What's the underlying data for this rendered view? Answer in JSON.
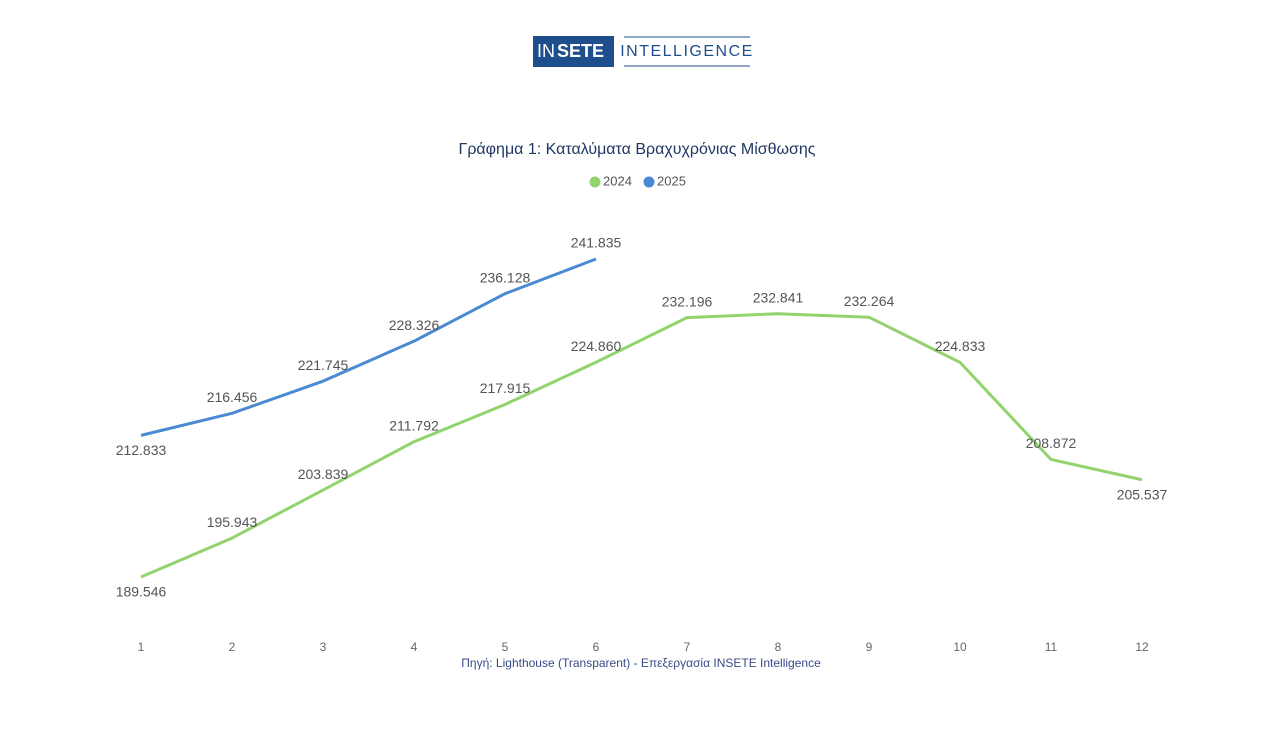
{
  "logo": {
    "mark": [
      "IN",
      "SETE"
    ],
    "text": "INTELLIGENCE"
  },
  "chart_data": {
    "type": "line",
    "title": "Γράφημα 1: Καταλύματα Βραχυχρόνιας Μίσθωσης",
    "categories": [
      "1",
      "2",
      "3",
      "4",
      "5",
      "6",
      "7",
      "8",
      "9",
      "10",
      "11",
      "12"
    ],
    "series": [
      {
        "name": "2024",
        "color": "#92d36e",
        "values": [
          189546,
          195943,
          203839,
          211792,
          217915,
          224860,
          232196,
          232841,
          232264,
          224833,
          208872,
          205537
        ],
        "value_labels": [
          "189.546",
          "195.943",
          "203.839",
          "211.792",
          "217.915",
          "224.860",
          "232.196",
          "232.841",
          "232.264",
          "224.833",
          "208.872",
          "205.537"
        ]
      },
      {
        "name": "2025",
        "color": "#4a8ad4",
        "values": [
          212833,
          216456,
          221745,
          228326,
          236128,
          241835,
          null,
          null,
          null,
          null,
          null,
          null
        ],
        "value_labels": [
          "212.833",
          "216.456",
          "221.745",
          "228.326",
          "236.128",
          "241.835",
          null,
          null,
          null,
          null,
          null,
          null
        ]
      }
    ],
    "grid": false,
    "legend": "top",
    "source": "Πηγή: Lighthouse (Transparent) - Επεξεργασία INSETE Intelligence"
  }
}
